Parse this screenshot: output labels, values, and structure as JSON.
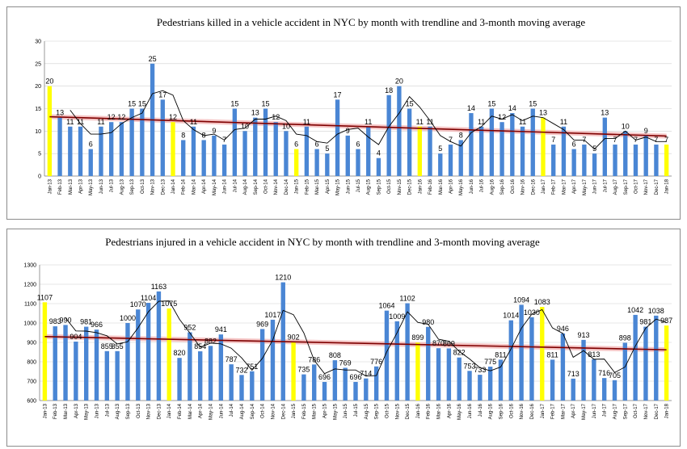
{
  "charts_meta": {
    "bar_color": "#4a86d4",
    "highlight_color": "#ffff00",
    "trend_color": "#7f0000",
    "band_color": "#f2b6b6",
    "moving_avg_color": "#000000"
  },
  "chart_data": [
    {
      "type": "bar",
      "title": "Pedestrians killed in a vehicle accident  in NYC  by month with trendline and 3-month moving average",
      "xlabel": "",
      "ylabel": "",
      "ylim": [
        0,
        30
      ],
      "yticks": [
        0,
        5,
        10,
        15,
        20,
        25,
        30
      ],
      "categories": [
        "Jan-13",
        "Feb-13",
        "Mar-13",
        "Apr-13",
        "May-13",
        "Jun-13",
        "Jul-13",
        "Aug-13",
        "Sep-13",
        "Oct-13",
        "Nov-13",
        "Dec-13",
        "Jan-14",
        "Feb-14",
        "Mar-14",
        "Apr-14",
        "May-14",
        "Jun-14",
        "Jul-14",
        "Aug-14",
        "Sep-14",
        "Oct-14",
        "Nov-14",
        "Dec-14",
        "Jan-15",
        "Feb-15",
        "Mar-15",
        "Apr-15",
        "May-15",
        "Jun-15",
        "Jul-15",
        "Aug-15",
        "Sep-15",
        "Oct-15",
        "Nov-15",
        "Dec-15",
        "Jan-16",
        "Feb-16",
        "Mar-16",
        "Apr-16",
        "May-16",
        "Jun-16",
        "Jul-16",
        "Aug-16",
        "Sep-16",
        "Oct-16",
        "Nov-16",
        "Dec-16",
        "Jan-17",
        "Feb-17",
        "Mar-17",
        "Apr-17",
        "May-17",
        "Jun-17",
        "Jul-17",
        "Aug-17",
        "Sep-17",
        "Oct-17",
        "Nov-17",
        "Dec-17",
        "Jan-18"
      ],
      "values": [
        20,
        13,
        11,
        11,
        6,
        11,
        12,
        12,
        15,
        15,
        25,
        17,
        12,
        8,
        11,
        8,
        9,
        7,
        15,
        10,
        13,
        15,
        12,
        10,
        6,
        11,
        6,
        5,
        17,
        9,
        6,
        11,
        4,
        18,
        20,
        15,
        11,
        11,
        5,
        7,
        8,
        14,
        11,
        15,
        12,
        14,
        11,
        15,
        13,
        7,
        11,
        6,
        7,
        5,
        13,
        7,
        10,
        7,
        9,
        7,
        7
      ],
      "data_labels": [
        "20",
        "13",
        "11",
        "11",
        "6",
        "11",
        "12",
        "12",
        "15",
        "15",
        "25",
        "17",
        "12",
        "8",
        "11",
        "8",
        "9",
        "7",
        "15",
        "10",
        "13",
        "15",
        "12",
        "10",
        "6",
        "11",
        "6",
        "5",
        "17",
        "9",
        "6",
        "11",
        "4",
        "18",
        "20",
        "15",
        "11",
        "11",
        "5",
        "7",
        "8",
        "14",
        "11",
        "15",
        "12",
        "14",
        "11",
        "15",
        "13",
        "7",
        "11",
        "6",
        "7",
        "5",
        "13",
        "7",
        "10",
        "7",
        "9",
        "7",
        "7"
      ],
      "highlighted_categories": [
        "Jan-13",
        "Jan-14",
        "Jan-15",
        "Jan-16",
        "Jan-17",
        "Jan-18"
      ],
      "trendline": {
        "start": 13.2,
        "end": 8.9
      },
      "moving_average": {
        "window": 3
      }
    },
    {
      "type": "bar",
      "title": "Pedestrians injured in a vehicle accident in NYC by month with trendline and 3-month moving average",
      "xlabel": "",
      "ylabel": "",
      "ylim": [
        600,
        1300
      ],
      "yticks": [
        600,
        700,
        800,
        900,
        1000,
        1100,
        1200,
        1300
      ],
      "categories": [
        "Jan-13",
        "Feb-13",
        "Mar-13",
        "Apr-13",
        "May-13",
        "Jun-13",
        "Jul-13",
        "Aug-13",
        "Sep-13",
        "Oct-13",
        "Nov-13",
        "Dec-13",
        "Jan-14",
        "Feb-14",
        "Mar-14",
        "Apr-14",
        "May-14",
        "Jun-14",
        "Jul-14",
        "Aug-14",
        "Sep-14",
        "Oct-14",
        "Nov-14",
        "Dec-14",
        "Jan-15",
        "Feb-15",
        "Mar-15",
        "Apr-15",
        "May-15",
        "Jun-15",
        "Jul-15",
        "Aug-15",
        "Sep-15",
        "Oct-15",
        "Nov-15",
        "Dec-15",
        "Jan-16",
        "Feb-16",
        "Mar-16",
        "Apr-16",
        "May-16",
        "Jun-16",
        "Jul-16",
        "Aug-16",
        "Sep-16",
        "Oct-16",
        "Nov-16",
        "Dec-16",
        "Jan-17",
        "Feb-17",
        "Mar-17",
        "Apr-17",
        "May-17",
        "Jun-17",
        "Jul-17",
        "Aug-17",
        "Sep-17",
        "Oct-17",
        "Nov-17",
        "Dec-17",
        "Jan-18"
      ],
      "values": [
        1107,
        983,
        990,
        904,
        981,
        966,
        855,
        855,
        1000,
        1070,
        1104,
        1163,
        1075,
        820,
        952,
        854,
        882,
        941,
        787,
        732,
        751,
        969,
        1017,
        1210,
        902,
        735,
        786,
        696,
        808,
        769,
        696,
        714,
        776,
        1064,
        1009,
        1102,
        899,
        980,
        870,
        869,
        822,
        753,
        733,
        775,
        811,
        1014,
        1094,
        1030,
        1083,
        811,
        946,
        713,
        913,
        813,
        716,
        705,
        898,
        1042,
        981,
        1038,
        987
      ],
      "data_labels": [
        "1107",
        "983",
        "990",
        "904",
        "981",
        "966",
        "855",
        "855",
        "1000",
        "1070",
        "1104",
        "1163",
        "1075",
        "820",
        "952",
        "854",
        "882",
        "941",
        "787",
        "732",
        "751",
        "969",
        "1017",
        "1210",
        "902",
        "735",
        "786",
        "696",
        "808",
        "769",
        "696",
        "714",
        "776",
        "1064",
        "1009",
        "1102",
        "899",
        "980",
        "870",
        "869",
        "822",
        "753",
        "733",
        "775",
        "811",
        "1014",
        "1094",
        "1030",
        "1083",
        "811",
        "946",
        "713",
        "913",
        "813",
        "716",
        "705",
        "898",
        "1042",
        "981",
        "1038",
        "987"
      ],
      "highlighted_categories": [
        "Jan-13",
        "Jan-14",
        "Jan-15",
        "Jan-16",
        "Jan-17",
        "Jan-18"
      ],
      "trendline": {
        "start": 930,
        "end": 862
      },
      "moving_average": {
        "window": 3
      }
    }
  ]
}
